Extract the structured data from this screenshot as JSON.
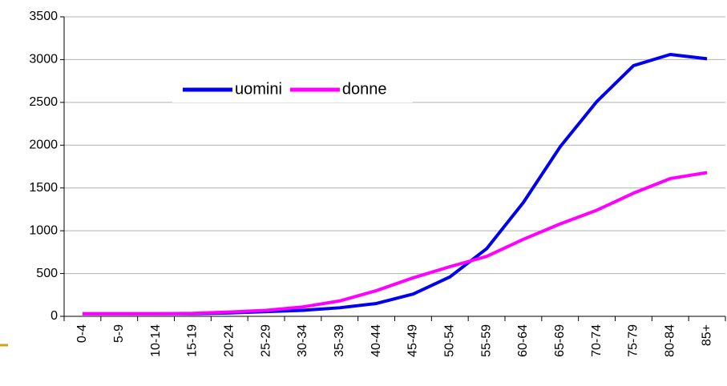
{
  "chart_data": {
    "type": "line",
    "categories": [
      "0-4",
      "5-9",
      "10-14",
      "15-19",
      "20-24",
      "25-29",
      "30-34",
      "35-39",
      "40-44",
      "45-49",
      "50-54",
      "55-59",
      "60-64",
      "65-69",
      "70-74",
      "75-79",
      "80-84",
      "85+"
    ],
    "series": [
      {
        "name": "uomini",
        "color": "#0000ee",
        "values": [
          30,
          30,
          30,
          30,
          40,
          55,
          70,
          100,
          150,
          260,
          460,
          790,
          1330,
          1980,
          2510,
          2930,
          3060,
          3010
        ]
      },
      {
        "name": "donne",
        "color": "#ff00ff",
        "values": [
          30,
          30,
          30,
          35,
          50,
          70,
          110,
          180,
          300,
          450,
          580,
          700,
          900,
          1080,
          1240,
          1440,
          1610,
          1680
        ]
      }
    ],
    "ylim": [
      0,
      3500
    ],
    "yticks": [
      0,
      500,
      1000,
      1500,
      2000,
      2500,
      3000,
      3500
    ],
    "grid": true,
    "legend": "top"
  }
}
